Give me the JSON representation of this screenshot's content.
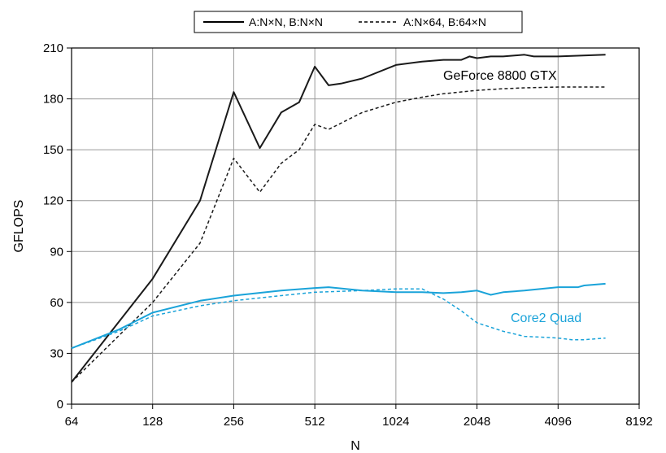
{
  "chart_data": {
    "type": "line",
    "title": "",
    "xlabel": "N",
    "ylabel": "GFLOPS",
    "x_scale": "log2",
    "xlim": [
      64,
      8192
    ],
    "ylim": [
      0,
      210
    ],
    "x_ticks": [
      64,
      128,
      256,
      512,
      1024,
      2048,
      4096,
      8192
    ],
    "x_tick_labels": [
      "64",
      "128",
      "256",
      "512",
      "1024",
      "2048",
      "4096",
      "8192"
    ],
    "y_ticks": [
      0,
      30,
      60,
      90,
      120,
      150,
      180,
      210
    ],
    "y_tick_labels": [
      "0",
      "30",
      "60",
      "90",
      "120",
      "150",
      "180",
      "210"
    ],
    "grid": true,
    "legend": {
      "placement": "top-center",
      "entries": [
        {
          "label": "A:N×N, B:N×N",
          "style": "solid"
        },
        {
          "label": "A:N×64, B:64×N",
          "style": "dashed"
        }
      ]
    },
    "annotations": [
      {
        "text": "GeForce 8800 GTX",
        "color": "#000000"
      },
      {
        "text": "Core2 Quad",
        "color": "#1aa3d9"
      }
    ],
    "series": [
      {
        "legend_label": "A:N×N, B:N×N",
        "group": "GeForce 8800 GTX",
        "style": "solid",
        "color": "#1a1a1a",
        "x": [
          64,
          128,
          192,
          256,
          320,
          384,
          448,
          512,
          576,
          640,
          768,
          1024,
          1280,
          1536,
          1792,
          1920,
          2048,
          2304,
          2560,
          3072,
          3328,
          4096,
          6144
        ],
        "y": [
          13,
          74,
          120,
          184,
          151,
          172,
          178,
          199,
          188,
          189,
          192,
          200,
          202,
          203,
          203,
          205,
          204,
          205,
          205,
          206,
          205,
          205,
          206
        ]
      },
      {
        "legend_label": "A:N×64, B:64×N",
        "group": "GeForce 8800 GTX",
        "style": "dashed",
        "color": "#1a1a1a",
        "x": [
          64,
          128,
          192,
          256,
          320,
          384,
          448,
          512,
          576,
          768,
          1024,
          1280,
          1536,
          2048,
          2560,
          3072,
          4096,
          6144
        ],
        "y": [
          13,
          60,
          95,
          145,
          125,
          142,
          150,
          165,
          162,
          172,
          178,
          181,
          183,
          185,
          186,
          186.5,
          187,
          187
        ]
      },
      {
        "legend_label": "A:N×N, B:N×N",
        "group": "Core2 Quad",
        "style": "solid",
        "color": "#1aa3d9",
        "x": [
          64,
          96,
          128,
          192,
          256,
          384,
          512,
          576,
          768,
          1024,
          1280,
          1536,
          1792,
          2048,
          2304,
          2560,
          3072,
          4096,
          4864,
          5120,
          6144
        ],
        "y": [
          33,
          44,
          54,
          61,
          64,
          67,
          68.5,
          69,
          67,
          66,
          66,
          65.5,
          66,
          67,
          64.5,
          66,
          67,
          69,
          69,
          70,
          71
        ]
      },
      {
        "legend_label": "A:N×64, B:64×N",
        "group": "Core2 Quad",
        "style": "dashed",
        "color": "#1aa3d9",
        "x": [
          64,
          96,
          128,
          192,
          256,
          384,
          512,
          768,
          1024,
          1280,
          1536,
          1792,
          2048,
          2560,
          3072,
          3584,
          4096,
          4608,
          5120,
          6144
        ],
        "y": [
          33,
          43,
          52,
          58,
          61,
          64,
          66,
          67,
          68,
          68,
          62,
          55,
          48,
          43,
          40,
          39.5,
          39,
          38,
          38,
          39
        ]
      }
    ]
  }
}
